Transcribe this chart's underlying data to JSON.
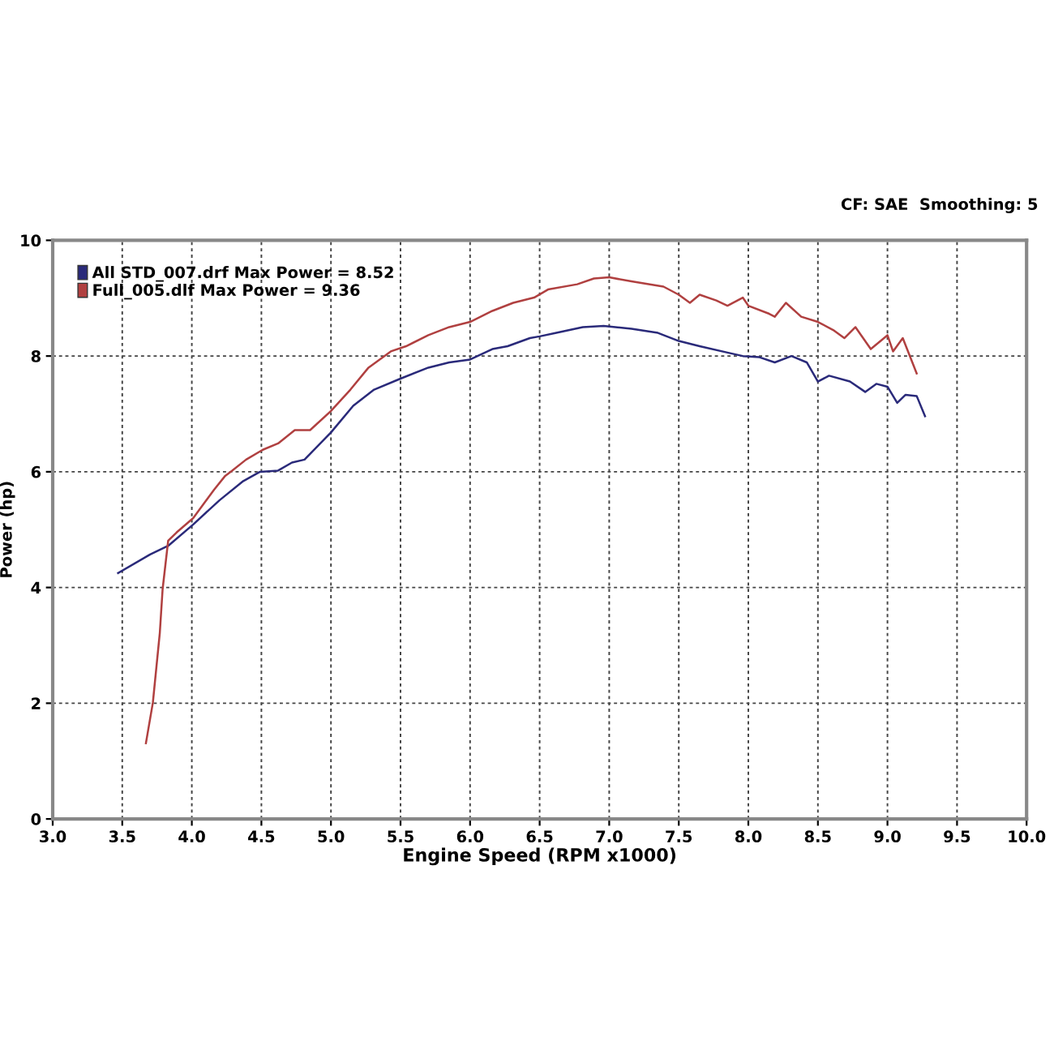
{
  "chart_data": {
    "type": "line",
    "xlabel": "Engine Speed (RPM x1000)",
    "ylabel": "Power (hp)",
    "annotations": [
      "CF: SAE  Smoothing: 5"
    ],
    "xlim": [
      3.0,
      10.0
    ],
    "xticks": [
      {
        "value": 3.0,
        "label": "3.0"
      },
      3.5,
      {
        "value": 4.0,
        "label": "4.0"
      },
      4.5,
      {
        "value": 5.0,
        "label": "5.0"
      },
      5.5,
      {
        "value": 6.0,
        "label": "6.0"
      },
      6.5,
      {
        "value": 7.0,
        "label": "7.0"
      },
      7.5,
      {
        "value": 8.0,
        "label": "8.0"
      },
      8.5,
      {
        "value": 9.0,
        "label": "9.0"
      },
      9.5,
      {
        "value": 10.0,
        "label": "10.0"
      }
    ],
    "ylim": [
      0,
      10
    ],
    "yticks": [
      0,
      2,
      4,
      6,
      8,
      10
    ],
    "grid": true,
    "legend": "top left",
    "line_style": "solid",
    "series": [
      {
        "name": "All STD_007.drf Max Power = 8.52",
        "color": "#2a2a7a",
        "x": [
          3.47,
          3.7,
          3.83,
          4.01,
          4.2,
          4.37,
          4.49,
          4.62,
          4.72,
          4.81,
          5.0,
          5.16,
          5.31,
          5.5,
          5.7,
          5.85,
          6.0,
          6.16,
          6.27,
          6.43,
          6.5,
          6.62,
          6.81,
          6.96,
          7.16,
          7.35,
          7.5,
          7.65,
          7.85,
          7.96,
          8.08,
          8.19,
          8.31,
          8.42,
          8.5,
          8.58,
          8.73,
          8.84,
          8.92,
          9.0,
          9.07,
          9.13,
          9.21,
          9.27
        ],
        "values": [
          4.25,
          4.57,
          4.72,
          5.09,
          5.51,
          5.84,
          6.0,
          6.02,
          6.16,
          6.21,
          6.68,
          7.14,
          7.42,
          7.61,
          7.8,
          7.89,
          7.94,
          8.12,
          8.17,
          8.31,
          8.34,
          8.4,
          8.5,
          8.52,
          8.47,
          8.4,
          8.26,
          8.17,
          8.06,
          8.0,
          7.98,
          7.89,
          8.0,
          7.89,
          7.56,
          7.66,
          7.56,
          7.38,
          7.52,
          7.47,
          7.19,
          7.33,
          7.31,
          6.96
        ]
      },
      {
        "name": "Full_005.dlf Max Power = 9.36",
        "color": "#b04040",
        "x": [
          3.67,
          3.72,
          3.77,
          3.79,
          3.83,
          3.89,
          4.01,
          4.16,
          4.24,
          4.29,
          4.39,
          4.51,
          4.62,
          4.74,
          4.85,
          5.0,
          5.14,
          5.27,
          5.43,
          5.54,
          5.7,
          5.85,
          6.0,
          6.16,
          6.31,
          6.46,
          6.56,
          6.77,
          6.89,
          7.0,
          7.16,
          7.39,
          7.5,
          7.58,
          7.65,
          7.77,
          7.85,
          7.96,
          8.0,
          8.15,
          8.19,
          8.27,
          8.38,
          8.5,
          8.61,
          8.69,
          8.77,
          8.88,
          9.0,
          9.04,
          9.11,
          9.21
        ],
        "values": [
          1.31,
          2.01,
          3.22,
          3.97,
          4.81,
          4.95,
          5.2,
          5.69,
          5.93,
          6.02,
          6.21,
          6.38,
          6.49,
          6.72,
          6.72,
          7.05,
          7.42,
          7.8,
          8.08,
          8.17,
          8.36,
          8.5,
          8.59,
          8.78,
          8.92,
          9.01,
          9.15,
          9.24,
          9.34,
          9.36,
          9.29,
          9.2,
          9.06,
          8.92,
          9.06,
          8.96,
          8.87,
          9.01,
          8.87,
          8.73,
          8.68,
          8.92,
          8.68,
          8.59,
          8.45,
          8.31,
          8.5,
          8.12,
          8.36,
          8.08,
          8.31,
          7.7
        ]
      }
    ]
  }
}
